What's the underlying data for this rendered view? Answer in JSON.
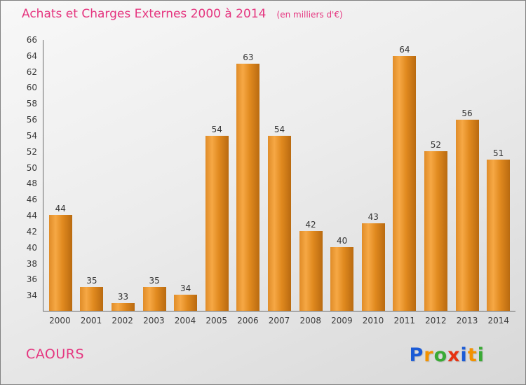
{
  "title": {
    "main": "Achats et Charges Externes 2000 à 2014",
    "subtitle": "(en milliers d'€)"
  },
  "chart_data": {
    "type": "bar",
    "title": "Achats et Charges Externes 2000 à 2014",
    "subtitle": "(en milliers d'€)",
    "categories": [
      "2000",
      "2001",
      "2002",
      "2003",
      "2004",
      "2005",
      "2006",
      "2007",
      "2008",
      "2009",
      "2010",
      "2011",
      "2012",
      "2013",
      "2014"
    ],
    "values": [
      44,
      35,
      33,
      35,
      34,
      54,
      63,
      54,
      42,
      40,
      43,
      64,
      52,
      56,
      51
    ],
    "xlabel": "",
    "ylabel": "",
    "ylim": [
      32,
      66
    ],
    "yticks": [
      34,
      36,
      38,
      40,
      42,
      44,
      46,
      48,
      50,
      52,
      54,
      56,
      58,
      60,
      62,
      64,
      66
    ],
    "grid": false,
    "legend": "none",
    "bar_color_light": "#f6a845",
    "bar_color_dark": "#b96a10"
  },
  "colors": {
    "title_pink": "#e5357f",
    "axis_text": "#3a3a3a",
    "axis_line": "#6b6b6b",
    "background_top": "#f8f8f8",
    "background_bottom": "#d8d8d8"
  },
  "footer": {
    "company": "CAOURS",
    "logo_letters": [
      {
        "ch": "P",
        "color": "#1b5bd6"
      },
      {
        "ch": "r",
        "color": "#f39200"
      },
      {
        "ch": "o",
        "color": "#3aaa35"
      },
      {
        "ch": "x",
        "color": "#e63312"
      },
      {
        "ch": "i",
        "color": "#1b5bd6"
      },
      {
        "ch": "t",
        "color": "#f39200"
      },
      {
        "ch": "i",
        "color": "#3aaa35"
      }
    ]
  }
}
